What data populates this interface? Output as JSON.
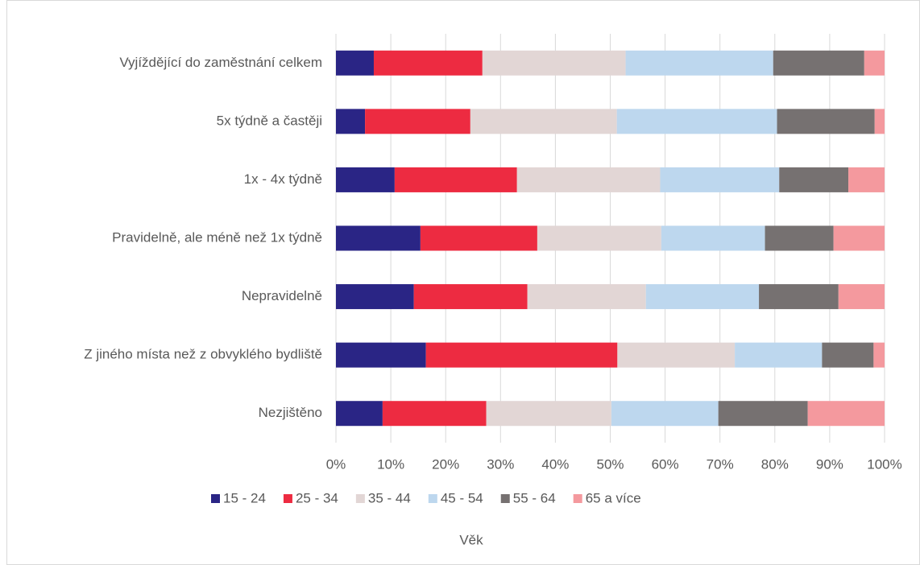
{
  "chart_data": {
    "type": "stacked_barh",
    "categories": [
      "Vyjíždějící do zaměstnání celkem",
      "5x týdně a častěji",
      "1x - 4x týdně",
      "Pravidelně, ale méně než 1x týdně",
      "Nepravidelně",
      "Z jiného místa než z obvyklého bydliště",
      "Nezjištěno"
    ],
    "series": [
      {
        "name": "15 - 24",
        "color": "#2a2585",
        "values": [
          6.9,
          5.3,
          10.7,
          15.4,
          14.2,
          16.4,
          8.5
        ]
      },
      {
        "name": "25 - 34",
        "color": "#ed2b41",
        "values": [
          19.8,
          19.2,
          22.3,
          21.3,
          20.7,
          34.9,
          18.9
        ]
      },
      {
        "name": "35 - 44",
        "color": "#e2d6d5",
        "values": [
          26.1,
          26.7,
          26.1,
          22.6,
          21.6,
          21.4,
          22.8
        ]
      },
      {
        "name": "45 - 54",
        "color": "#bdd7ee",
        "values": [
          26.9,
          29.2,
          21.7,
          18.9,
          20.6,
          15.9,
          19.5
        ]
      },
      {
        "name": "55 - 64",
        "color": "#767171",
        "values": [
          16.6,
          17.8,
          12.6,
          12.5,
          14.5,
          9.4,
          16.3
        ]
      },
      {
        "name": "65 a více",
        "color": "#f4999e",
        "values": [
          3.7,
          1.8,
          6.6,
          9.3,
          8.4,
          2.0,
          14.0
        ]
      }
    ],
    "xlim": [
      0,
      100
    ],
    "xticks": [
      {
        "value": 0,
        "label": "0%"
      },
      {
        "value": 10,
        "label": "10%"
      },
      {
        "value": 20,
        "label": "20%"
      },
      {
        "value": 30,
        "label": "30%"
      },
      {
        "value": 40,
        "label": "40%"
      },
      {
        "value": 50,
        "label": "50%"
      },
      {
        "value": 60,
        "label": "60%"
      },
      {
        "value": 70,
        "label": "70%"
      },
      {
        "value": 80,
        "label": "80%"
      },
      {
        "value": 90,
        "label": "90%"
      },
      {
        "value": 100,
        "label": "100%"
      }
    ],
    "x_label": "Věk",
    "grid": true,
    "legend": "bottom"
  }
}
